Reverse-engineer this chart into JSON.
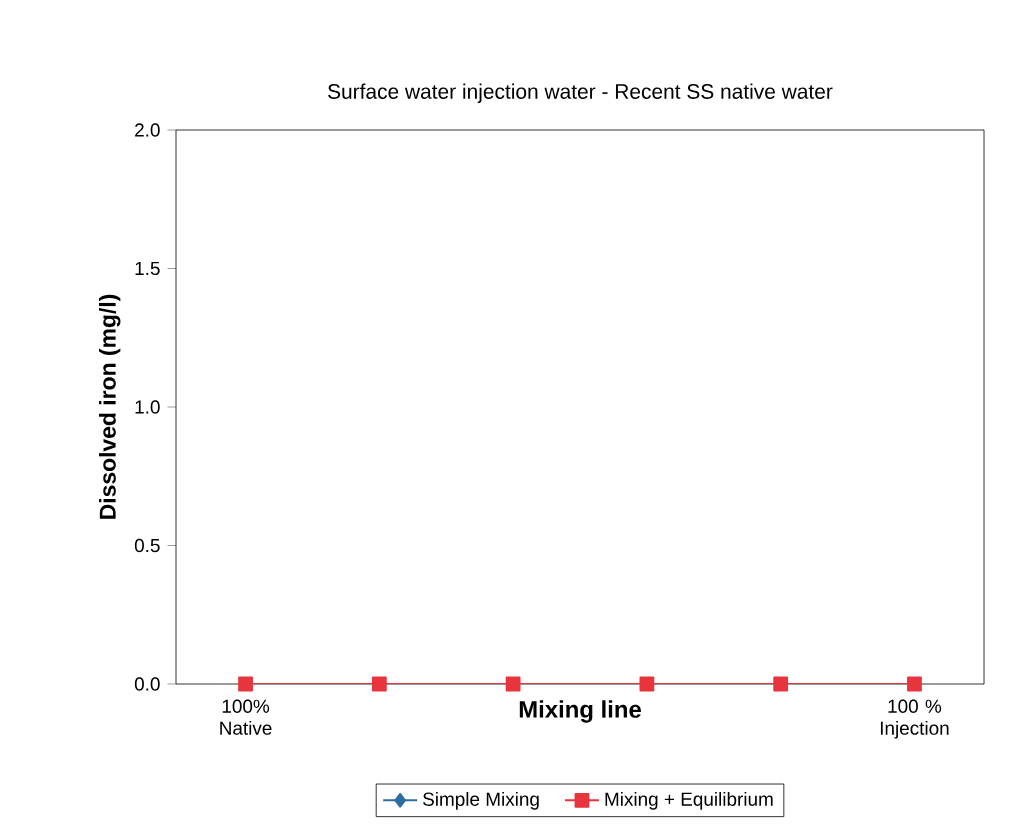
{
  "chart_data": {
    "type": "line",
    "title": "Surface water injection water - Recent SS native water",
    "xlabel": "Mixing line",
    "ylabel": "Dissolved iron (mg/l)",
    "categories": [
      "100% Native",
      null,
      null,
      null,
      null,
      "100 % Injection"
    ],
    "series": [
      {
        "name": "Simple Mixing",
        "color": "#2e6e9e",
        "marker": "diamond",
        "values": [
          null,
          null,
          null,
          null,
          null,
          null
        ]
      },
      {
        "name": "Mixing + Equilibrium",
        "color": "#e8343c",
        "marker": "square",
        "values": [
          0,
          0,
          0,
          0,
          0,
          0
        ]
      }
    ],
    "ylim": [
      0,
      2.0
    ],
    "yticks": [
      {
        "value": 0,
        "label": "0.0"
      },
      0.5,
      {
        "value": 1.0,
        "label": "1.0"
      },
      1.5,
      {
        "value": 2.0,
        "label": "2.0"
      }
    ],
    "grid": false,
    "legend": "bottom"
  }
}
